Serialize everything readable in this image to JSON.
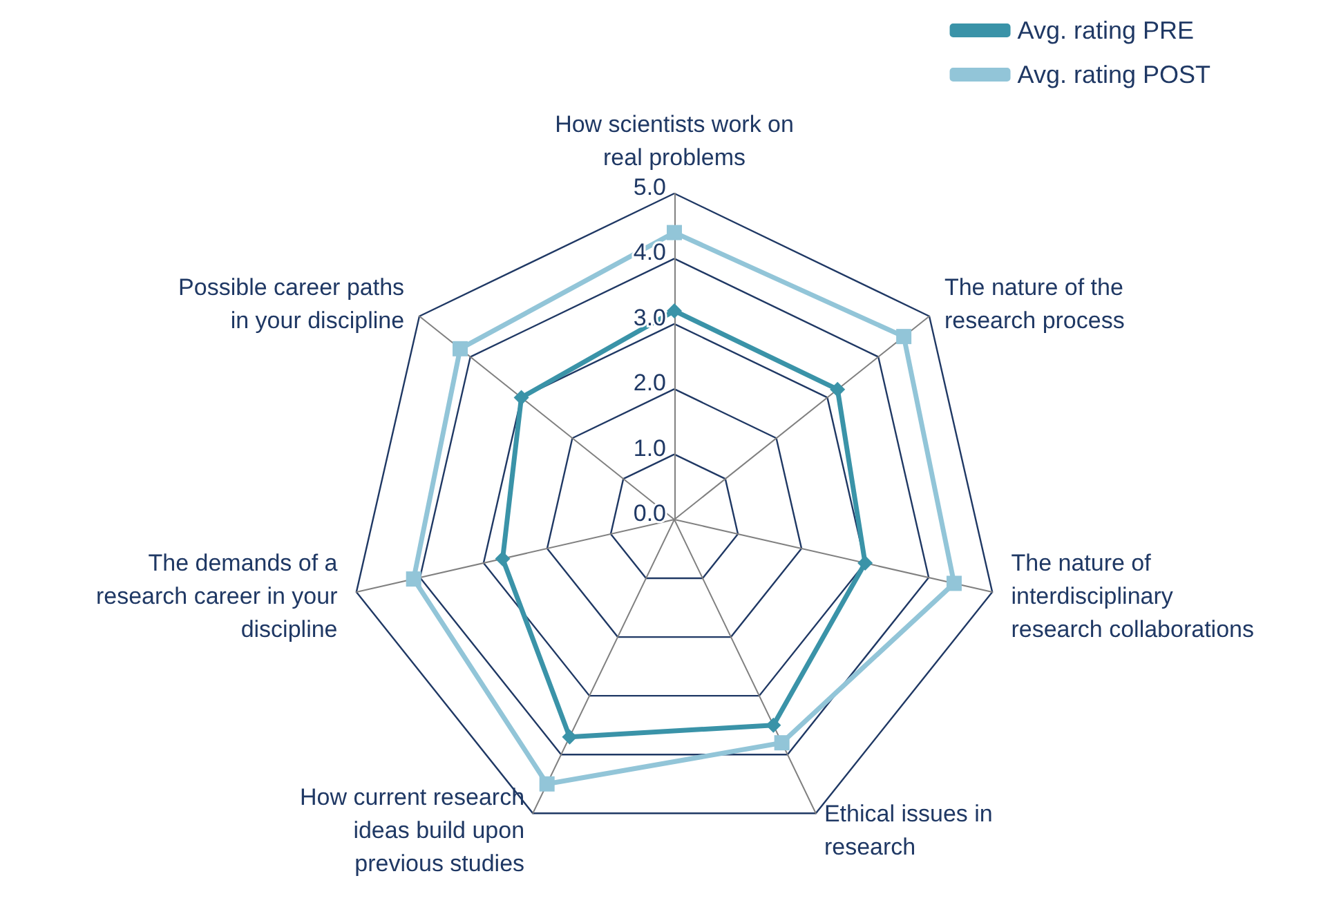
{
  "chart_data": {
    "type": "radar",
    "categories": [
      "How scientists work on real problems",
      "The nature of the research process",
      "The nature of interdisciplinary research collaborations",
      "Ethical issues in research",
      "How current research ideas build upon previous studies",
      "The demands of a research career in your discipline",
      "Possible career paths in your discipline"
    ],
    "series": [
      {
        "name": "Avg. rating PRE",
        "color": "#3a93a8",
        "marker": "diamond",
        "values": [
          3.2,
          3.2,
          3.0,
          3.5,
          3.7,
          2.7,
          3.0
        ]
      },
      {
        "name": "Avg. rating POST",
        "color": "#92c5d8",
        "marker": "square",
        "values": [
          4.4,
          4.5,
          4.4,
          3.8,
          4.5,
          4.1,
          4.2
        ]
      }
    ],
    "ylim": [
      0,
      5
    ],
    "yticks": [
      {
        "value": 0,
        "label": "0.0"
      },
      {
        "value": 1,
        "label": "1.0"
      },
      {
        "value": 2,
        "label": "2.0"
      },
      {
        "value": 3,
        "label": "3.0"
      },
      {
        "value": 4,
        "label": "4.0"
      },
      {
        "value": 5,
        "label": "5.0"
      }
    ],
    "legend": "top right"
  }
}
